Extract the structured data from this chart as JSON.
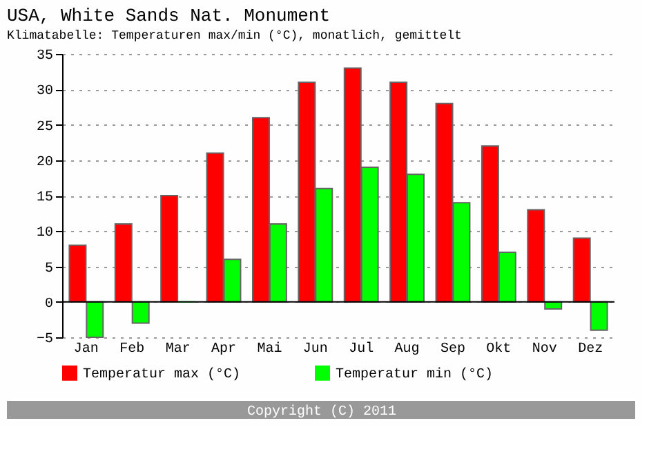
{
  "chart_data": {
    "type": "bar",
    "title": "USA, White Sands Nat. Monument",
    "subtitle": "Klimatabelle: Temperaturen max/min (°C), monatlich, gemittelt",
    "categories": [
      "Jan",
      "Feb",
      "Mar",
      "Apr",
      "Mai",
      "Jun",
      "Jul",
      "Aug",
      "Sep",
      "Okt",
      "Nov",
      "Dez"
    ],
    "series": [
      {
        "name": "Temperatur max (°C)",
        "color": "#ff0000",
        "values": [
          8,
          11,
          15,
          21,
          26,
          31,
          33,
          31,
          28,
          22,
          13,
          9
        ]
      },
      {
        "name": "Temperatur min (°C)",
        "color": "#00ff00",
        "values": [
          -5,
          -3,
          0,
          6,
          11,
          16,
          19,
          18,
          14,
          7,
          -1,
          -4
        ]
      }
    ],
    "ylim": [
      -5,
      35
    ],
    "yticks": [
      -5,
      0,
      5,
      10,
      15,
      20,
      25,
      30,
      35
    ],
    "grid": "y",
    "legend": "bottom",
    "annotations": [
      "Copyright (C) 2011"
    ]
  }
}
